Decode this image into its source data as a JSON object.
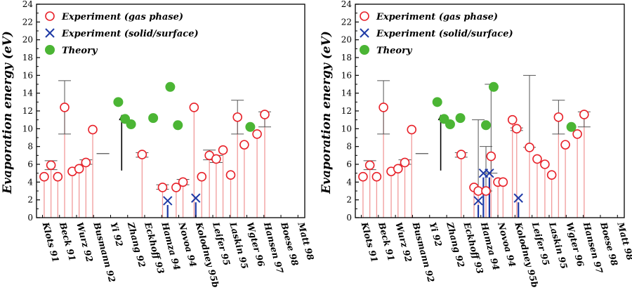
{
  "colors": {
    "gas": "#e8222a",
    "solid": "#1f3aa6",
    "theory": "#4bb534",
    "stem": "#f19a9a",
    "errbar": "#555555",
    "arrow": "#000000"
  },
  "chart_data": [
    {
      "type": "scatter",
      "ylabel": "Evaporation energy (eV)",
      "ylim": [
        0,
        24
      ],
      "yticks": [
        0,
        2,
        4,
        6,
        8,
        10,
        12,
        14,
        16,
        18,
        20,
        22,
        24
      ],
      "legend": {
        "gas": "Experiment (gas phase)",
        "solid": "Experiment (solid/surface)",
        "theory": "Theory"
      },
      "legend_position": "top-left",
      "categories": [
        "Klots 91",
        "Beck 91",
        "Wurz 92",
        "Busmann 92",
        "Yi 92",
        "Zhang 92",
        "Eckhoff 93",
        "Hamza 94",
        "Novoa 94",
        "Kolodney 95b",
        "Leifer 95",
        "Laskin 95",
        "Wgter 96",
        "Hansen 97",
        "Boese 98",
        "Matt 98"
      ],
      "gas_phase": [
        [
          0.1,
          4.6
        ],
        [
          0.5,
          5.9
        ],
        [
          0.9,
          4.6
        ],
        [
          1.3,
          12.4
        ],
        [
          1.75,
          5.2
        ],
        [
          2.15,
          5.5
        ],
        [
          2.55,
          6.2
        ],
        [
          2.95,
          9.9
        ],
        [
          5.85,
          7.1
        ],
        [
          7.05,
          3.4
        ],
        [
          7.85,
          3.4
        ],
        [
          8.25,
          4.0
        ],
        [
          8.9,
          12.4
        ],
        [
          9.35,
          4.6
        ],
        [
          9.8,
          7.0
        ],
        [
          10.2,
          6.6
        ],
        [
          10.6,
          7.6
        ],
        [
          11.05,
          4.8
        ],
        [
          11.45,
          11.3
        ],
        [
          11.85,
          8.2
        ],
        [
          12.6,
          9.4
        ],
        [
          13.05,
          11.6
        ]
      ],
      "solid_surface": [
        [
          7.35,
          1.9
        ],
        [
          9.0,
          2.2
        ]
      ],
      "theory": [
        [
          4.45,
          13.0
        ],
        [
          4.85,
          11.1
        ],
        [
          5.2,
          10.5
        ],
        [
          6.5,
          11.2
        ],
        [
          7.95,
          10.4
        ],
        [
          7.5,
          14.7
        ],
        [
          12.2,
          10.2
        ]
      ],
      "error_bars": [
        [
          0.5,
          5.4,
          6.4
        ],
        [
          1.3,
          9.4,
          15.4
        ],
        [
          2.55,
          6.0,
          6.5
        ],
        [
          3.55,
          7.2,
          7.2
        ],
        [
          5.85,
          6.8,
          7.3
        ],
        [
          7.05,
          3.2,
          3.7
        ],
        [
          8.25,
          3.7,
          4.3
        ],
        [
          9.8,
          6.5,
          7.6
        ],
        [
          10.2,
          6.2,
          7.0
        ],
        [
          11.45,
          9.4,
          13.2
        ],
        [
          13.05,
          10.2,
          11.9
        ]
      ],
      "arrow": {
        "x": 4.65,
        "from": 5.3,
        "to": 11.6
      }
    },
    {
      "type": "scatter",
      "ylabel": "Evaporation energy (eV)",
      "ylim": [
        0,
        24
      ],
      "yticks": [
        0,
        2,
        4,
        6,
        8,
        10,
        12,
        14,
        16,
        18,
        20,
        22,
        24
      ],
      "legend": {
        "gas": "Experiment (gas phase)",
        "solid": "Experiment (solid/surface)",
        "theory": "Theory"
      },
      "legend_position": "top-left",
      "categories": [
        "Klots 91",
        "Beck 91",
        "Wurz 92",
        "Busmann 92",
        "Yi 92",
        "Zhang 92",
        "Eckhoff 93",
        "Hamza 94",
        "Novoa 94",
        "Kolodney 95b",
        "Leifer 95",
        "Laskin 95",
        "Wgter 96",
        "Hansen 97",
        "Boese 98",
        "Matt 98"
      ],
      "gas_phase": [
        [
          0.1,
          4.6
        ],
        [
          0.5,
          5.9
        ],
        [
          0.9,
          4.6
        ],
        [
          1.3,
          12.4
        ],
        [
          1.75,
          5.2
        ],
        [
          2.15,
          5.5
        ],
        [
          2.55,
          6.2
        ],
        [
          2.95,
          9.9
        ],
        [
          5.85,
          7.1
        ],
        [
          6.6,
          3.4
        ],
        [
          6.85,
          3.0
        ],
        [
          7.3,
          3.0
        ],
        [
          7.6,
          6.9
        ],
        [
          8.0,
          4.0
        ],
        [
          8.3,
          4.0
        ],
        [
          8.85,
          11.0
        ],
        [
          9.1,
          10.0
        ],
        [
          9.85,
          7.9
        ],
        [
          10.3,
          6.6
        ],
        [
          10.75,
          6.0
        ],
        [
          11.15,
          4.8
        ],
        [
          11.55,
          11.3
        ],
        [
          11.95,
          8.2
        ],
        [
          12.65,
          9.4
        ],
        [
          13.05,
          11.6
        ]
      ],
      "solid_surface": [
        [
          6.85,
          1.9
        ],
        [
          7.15,
          5.0
        ],
        [
          7.5,
          5.0
        ],
        [
          9.2,
          2.2
        ]
      ],
      "theory": [
        [
          4.45,
          13.0
        ],
        [
          4.85,
          11.1
        ],
        [
          5.2,
          10.5
        ],
        [
          5.8,
          11.2
        ],
        [
          7.3,
          10.4
        ],
        [
          7.75,
          14.7
        ],
        [
          12.3,
          10.2
        ]
      ],
      "error_bars": [
        [
          0.5,
          5.4,
          6.4
        ],
        [
          1.3,
          9.4,
          15.4
        ],
        [
          2.55,
          6.0,
          6.5
        ],
        [
          3.55,
          7.2,
          7.2
        ],
        [
          5.85,
          6.8,
          7.3
        ],
        [
          6.85,
          3.0,
          11.0
        ],
        [
          7.3,
          3.0,
          8.0
        ],
        [
          7.6,
          5.0,
          15.0
        ],
        [
          9.1,
          9.8,
          10.1
        ],
        [
          9.85,
          7.9,
          16.0
        ],
        [
          11.55,
          9.4,
          13.2
        ],
        [
          13.05,
          10.2,
          11.9
        ]
      ],
      "arrow": {
        "x": 4.65,
        "from": 5.3,
        "to": 11.6
      }
    }
  ]
}
